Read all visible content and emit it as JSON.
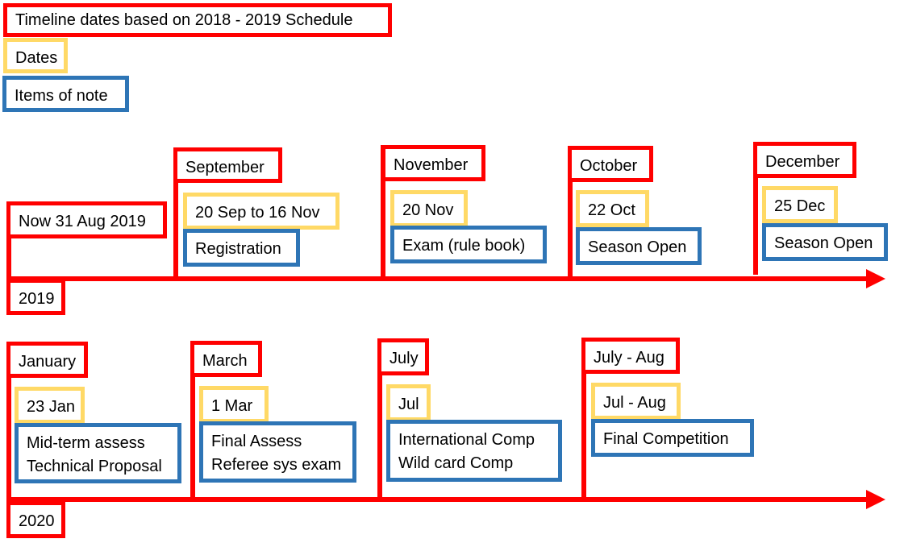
{
  "legend": {
    "title": "Timeline dates based on 2018 - 2019 Schedule",
    "dates_label": "Dates",
    "notes_label": "Items of note"
  },
  "colors": {
    "month": "#ff0000",
    "date": "#ffd966",
    "note": "#2e75b6",
    "axis": "#ff0000"
  },
  "timeline_2019": {
    "year": "2019",
    "start": "Now 31 Aug 2019",
    "events": [
      {
        "month": "September",
        "date": "20 Sep to 16 Nov",
        "note": "Registration"
      },
      {
        "month": "November",
        "date": "20 Nov",
        "note": "Exam (rule book)"
      },
      {
        "month": "October",
        "date": "22 Oct",
        "note": "Season Open"
      },
      {
        "month": "December",
        "date": "25 Dec",
        "note": "Season Open"
      }
    ]
  },
  "timeline_2020": {
    "year": "2020",
    "events": [
      {
        "month": "January",
        "date": "23 Jan",
        "note": [
          "Mid-term assess",
          "Technical Proposal"
        ]
      },
      {
        "month": "March",
        "date": "1 Mar",
        "note": [
          "Final Assess",
          "Referee sys exam"
        ]
      },
      {
        "month": "July",
        "date": "Jul",
        "note": [
          "International Comp",
          "Wild card Comp"
        ]
      },
      {
        "month": "July - Aug",
        "date": "Jul - Aug",
        "note": [
          "Final Competition"
        ]
      }
    ]
  }
}
